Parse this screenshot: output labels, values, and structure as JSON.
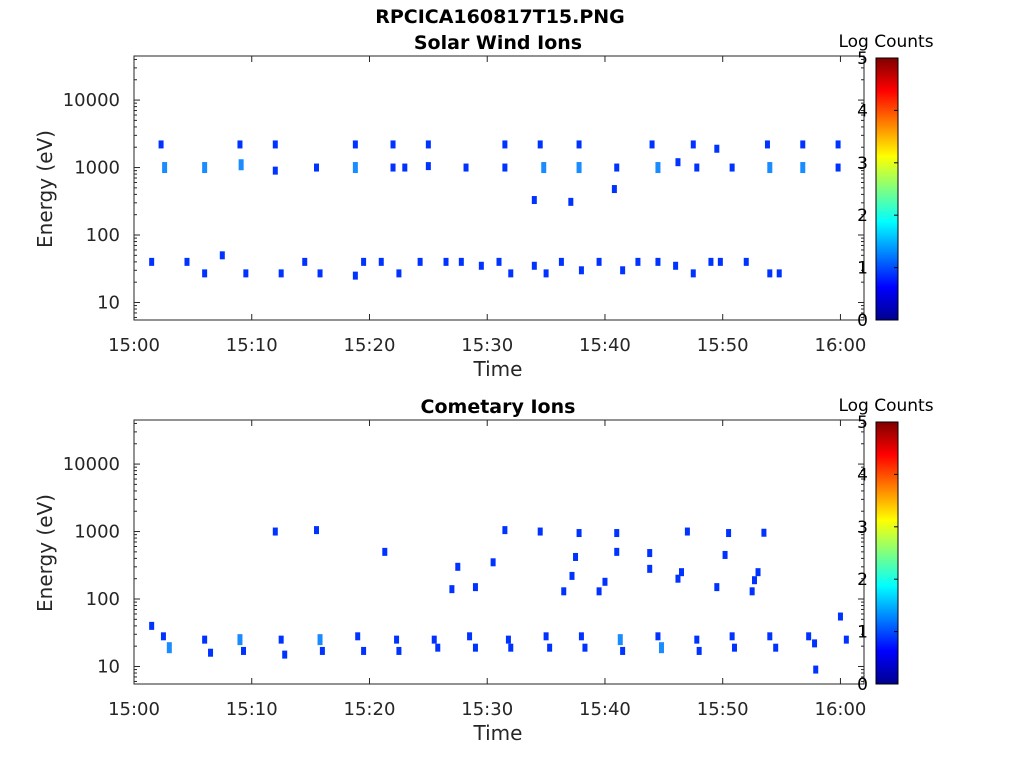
{
  "page": {
    "title": "RPCICA160817T15.PNG"
  },
  "colors": {
    "axis": "#262626",
    "dark_blue": "#00008f",
    "blue": "#0033ff",
    "light_blue": "#1a8cff",
    "cyan_blue": "#33bbff"
  },
  "chart_data": [
    {
      "type": "heatmap",
      "title": "Solar Wind Ions",
      "xlabel": "Time",
      "ylabel": "Energy (eV)",
      "x_ticks": [
        "15:00",
        "15:10",
        "15:20",
        "15:30",
        "15:40",
        "15:50",
        "16:00"
      ],
      "xlim_minutes": [
        0,
        62
      ],
      "y_scale": "log",
      "ylim": [
        5.5,
        45000
      ],
      "y_ticks": [
        10,
        100,
        1000,
        10000
      ],
      "y_tick_labels": [
        "10",
        "100",
        "1000",
        "10000"
      ],
      "colorbar": {
        "title": "Log Counts",
        "range": [
          0,
          5
        ],
        "ticks": [
          "0",
          "1",
          "2",
          "3",
          "4",
          "5"
        ],
        "colormap": "jet"
      },
      "cells": [
        [
          2.3,
          2200,
          1
        ],
        [
          2.6,
          1000,
          2
        ],
        [
          6.0,
          1000,
          2
        ],
        [
          9.0,
          2200,
          1
        ],
        [
          9.1,
          1100,
          2
        ],
        [
          12.0,
          2200,
          1
        ],
        [
          12.0,
          900,
          1
        ],
        [
          15.5,
          1000,
          1
        ],
        [
          18.8,
          2200,
          1
        ],
        [
          18.8,
          1000,
          2
        ],
        [
          22.0,
          2200,
          1
        ],
        [
          22.0,
          1000,
          1
        ],
        [
          25.0,
          2200,
          1
        ],
        [
          25.0,
          1050,
          1
        ],
        [
          28.2,
          1000,
          1
        ],
        [
          31.5,
          2200,
          1
        ],
        [
          31.5,
          1000,
          1
        ],
        [
          34.5,
          2200,
          1
        ],
        [
          34.8,
          1000,
          2
        ],
        [
          37.8,
          2200,
          1
        ],
        [
          37.8,
          1000,
          2
        ],
        [
          41.0,
          1000,
          1
        ],
        [
          44.0,
          2200,
          1
        ],
        [
          44.5,
          1000,
          2
        ],
        [
          47.5,
          2200,
          1
        ],
        [
          47.8,
          1000,
          1
        ],
        [
          50.8,
          1000,
          1
        ],
        [
          53.8,
          2200,
          1
        ],
        [
          54.0,
          1000,
          2
        ],
        [
          56.8,
          2200,
          1
        ],
        [
          56.8,
          1000,
          2
        ],
        [
          59.8,
          2200,
          1
        ],
        [
          59.8,
          1000,
          1
        ],
        [
          46.2,
          1200,
          1
        ],
        [
          49.5,
          1900,
          1
        ],
        [
          34.0,
          330,
          1
        ],
        [
          37.1,
          310,
          1
        ],
        [
          40.8,
          480,
          1
        ],
        [
          23.0,
          1000,
          1
        ],
        [
          1.5,
          40,
          1
        ],
        [
          4.5,
          40,
          1
        ],
        [
          6.0,
          27,
          1
        ],
        [
          7.5,
          50,
          1
        ],
        [
          9.5,
          27,
          1
        ],
        [
          12.5,
          27,
          1
        ],
        [
          14.5,
          40,
          1
        ],
        [
          15.8,
          27,
          1
        ],
        [
          18.8,
          25,
          1
        ],
        [
          19.5,
          40,
          1
        ],
        [
          21.0,
          40,
          1
        ],
        [
          22.5,
          27,
          1
        ],
        [
          24.3,
          40,
          1
        ],
        [
          26.5,
          40,
          1
        ],
        [
          27.8,
          40,
          1
        ],
        [
          29.5,
          35,
          1
        ],
        [
          31.0,
          40,
          1
        ],
        [
          32.0,
          27,
          1
        ],
        [
          34.0,
          35,
          1
        ],
        [
          35.0,
          27,
          1
        ],
        [
          36.3,
          40,
          1
        ],
        [
          38.0,
          30,
          1
        ],
        [
          39.5,
          40,
          1
        ],
        [
          41.5,
          30,
          1
        ],
        [
          42.8,
          40,
          1
        ],
        [
          44.5,
          40,
          1
        ],
        [
          46.0,
          35,
          1
        ],
        [
          47.5,
          27,
          1
        ],
        [
          49.0,
          40,
          1
        ],
        [
          49.8,
          40,
          1
        ],
        [
          54.0,
          27,
          1
        ],
        [
          54.8,
          27,
          1
        ],
        [
          52.0,
          40,
          1
        ]
      ]
    },
    {
      "type": "heatmap",
      "title": "Cometary Ions",
      "xlabel": "Time",
      "ylabel": "Energy (eV)",
      "x_ticks": [
        "15:00",
        "15:10",
        "15:20",
        "15:30",
        "15:40",
        "15:50",
        "16:00"
      ],
      "xlim_minutes": [
        0,
        62
      ],
      "y_scale": "log",
      "ylim": [
        5.5,
        45000
      ],
      "y_ticks": [
        10,
        100,
        1000,
        10000
      ],
      "y_tick_labels": [
        "10",
        "100",
        "1000",
        "10000"
      ],
      "colorbar": {
        "title": "Log Counts",
        "range": [
          0,
          5
        ],
        "ticks": [
          "0",
          "1",
          "2",
          "3",
          "4",
          "5"
        ],
        "colormap": "jet"
      },
      "cells": [
        [
          12.0,
          1000,
          1
        ],
        [
          15.5,
          1050,
          1
        ],
        [
          21.3,
          500,
          1
        ],
        [
          27.0,
          140,
          1
        ],
        [
          27.5,
          300,
          1
        ],
        [
          29.0,
          150,
          1
        ],
        [
          30.5,
          350,
          1
        ],
        [
          31.5,
          1050,
          1
        ],
        [
          34.5,
          1000,
          1
        ],
        [
          37.8,
          950,
          1
        ],
        [
          37.5,
          420,
          1
        ],
        [
          37.2,
          220,
          1
        ],
        [
          36.5,
          130,
          1
        ],
        [
          41.0,
          950,
          1
        ],
        [
          41.0,
          500,
          1
        ],
        [
          40.0,
          180,
          1
        ],
        [
          39.5,
          130,
          1
        ],
        [
          43.8,
          480,
          1
        ],
        [
          43.8,
          280,
          1
        ],
        [
          47.0,
          1000,
          1
        ],
        [
          46.5,
          250,
          1
        ],
        [
          46.2,
          200,
          1
        ],
        [
          49.5,
          150,
          1
        ],
        [
          50.5,
          950,
          1
        ],
        [
          50.2,
          450,
          1
        ],
        [
          53.5,
          960,
          1
        ],
        [
          53.0,
          250,
          1
        ],
        [
          52.7,
          190,
          1
        ],
        [
          52.5,
          130,
          1
        ],
        [
          1.5,
          40,
          1
        ],
        [
          2.5,
          28,
          1
        ],
        [
          3.0,
          19,
          2
        ],
        [
          6.0,
          25,
          1
        ],
        [
          6.5,
          16,
          1
        ],
        [
          9.0,
          25,
          2
        ],
        [
          9.3,
          17,
          1
        ],
        [
          12.5,
          25,
          1
        ],
        [
          12.8,
          15,
          1
        ],
        [
          15.8,
          25,
          2
        ],
        [
          16.0,
          17,
          1
        ],
        [
          19.0,
          28,
          1
        ],
        [
          19.5,
          17,
          1
        ],
        [
          22.3,
          25,
          1
        ],
        [
          22.5,
          17,
          1
        ],
        [
          25.5,
          25,
          1
        ],
        [
          25.8,
          19,
          1
        ],
        [
          28.5,
          28,
          1
        ],
        [
          29.0,
          19,
          1
        ],
        [
          31.8,
          25,
          1
        ],
        [
          32.0,
          19,
          1
        ],
        [
          35.0,
          28,
          1
        ],
        [
          35.3,
          19,
          1
        ],
        [
          38.0,
          28,
          1
        ],
        [
          38.3,
          19,
          1
        ],
        [
          41.3,
          25,
          2
        ],
        [
          41.5,
          17,
          1
        ],
        [
          44.5,
          28,
          1
        ],
        [
          44.8,
          19,
          2
        ],
        [
          47.8,
          25,
          1
        ],
        [
          48.0,
          17,
          1
        ],
        [
          50.8,
          28,
          1
        ],
        [
          51.0,
          19,
          1
        ],
        [
          54.0,
          28,
          1
        ],
        [
          54.5,
          19,
          1
        ],
        [
          57.3,
          28,
          1
        ],
        [
          57.8,
          22,
          1
        ],
        [
          57.9,
          9,
          1
        ],
        [
          60.5,
          25,
          1
        ],
        [
          60.0,
          55,
          1
        ]
      ]
    }
  ]
}
